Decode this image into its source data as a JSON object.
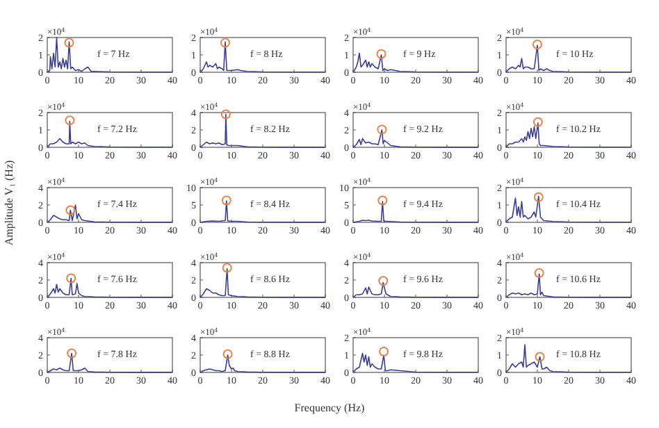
{
  "chart_data": [
    {
      "type": "line",
      "xlim": [
        0,
        40
      ],
      "xticks": [
        0,
        10,
        20,
        30,
        40
      ],
      "ylim": [
        0,
        2
      ],
      "yticks": [
        0,
        1,
        2
      ],
      "annotations": [
        "×10$^{4}$",
        "f = 7 Hz"
      ],
      "series": [
        {
          "color": "#3b3b98",
          "x": [
            0,
            0.8,
            1,
            1.5,
            2,
            2.5,
            3,
            3.5,
            4,
            4.5,
            5,
            5.5,
            6,
            6.5,
            7,
            7.5,
            8,
            9,
            10,
            11,
            12,
            13,
            14,
            15,
            20,
            30,
            40
          ],
          "values": [
            0,
            0.1,
            0.9,
            0.2,
            1.1,
            0.3,
            2.0,
            0.3,
            0.6,
            0.2,
            0.8,
            0.3,
            0.7,
            0.2,
            1.75,
            0.2,
            0.3,
            0.1,
            0.15,
            0.05,
            0.2,
            0.3,
            0.05,
            0.05,
            0.02,
            0.01,
            0.01
          ]
        },
        {
          "type": "scatter",
          "marker": "circle",
          "color": "#e8834a",
          "x": [
            7
          ],
          "values": [
            1.7
          ]
        }
      ]
    },
    {
      "type": "line",
      "xlim": [
        0,
        40
      ],
      "xticks": [
        0,
        10,
        20,
        30,
        40
      ],
      "ylim": [
        0,
        2
      ],
      "yticks": [
        0,
        1,
        2
      ],
      "annotations": [
        "×10$^{4}$",
        "f = 8 Hz"
      ],
      "series": [
        {
          "color": "#3b3b98",
          "x": [
            0,
            1,
            2,
            2.5,
            3,
            4,
            5,
            5.5,
            6,
            7,
            7.5,
            8,
            8.5,
            9,
            10,
            12,
            13,
            15,
            20,
            30,
            40
          ],
          "values": [
            0,
            0.2,
            0.6,
            0.3,
            0.4,
            0.3,
            0.5,
            0.2,
            0.3,
            0.2,
            0.1,
            1.75,
            0.1,
            0.1,
            0.1,
            0.15,
            0.1,
            0.05,
            0.02,
            0.01,
            0.01
          ]
        },
        {
          "type": "scatter",
          "marker": "circle",
          "color": "#e8834a",
          "x": [
            8
          ],
          "values": [
            1.7
          ]
        }
      ]
    },
    {
      "type": "line",
      "xlim": [
        0,
        40
      ],
      "xticks": [
        0,
        10,
        20,
        30,
        40
      ],
      "ylim": [
        0,
        2
      ],
      "yticks": [
        0,
        1,
        2
      ],
      "annotations": [
        "×10$^{4}$",
        "f = 9 Hz"
      ],
      "series": [
        {
          "color": "#3b3b98",
          "x": [
            0,
            1,
            1.5,
            2,
            2.5,
            3,
            4,
            4.5,
            5,
            5.5,
            6,
            7,
            8,
            9,
            9.5,
            10,
            11,
            12,
            15,
            20,
            30,
            40
          ],
          "values": [
            0,
            0.3,
            0.6,
            1.1,
            0.3,
            0.4,
            0.7,
            0.3,
            0.6,
            0.3,
            0.5,
            0.3,
            0.2,
            1.0,
            0.1,
            0.2,
            0.1,
            0.15,
            0.05,
            0.02,
            0.01,
            0.01
          ]
        },
        {
          "type": "scatter",
          "marker": "circle",
          "color": "#e8834a",
          "x": [
            9
          ],
          "values": [
            1.05
          ]
        }
      ]
    },
    {
      "type": "line",
      "xlim": [
        0,
        40
      ],
      "xticks": [
        0,
        10,
        20,
        30,
        40
      ],
      "ylim": [
        0,
        2
      ],
      "yticks": [
        0,
        1,
        2
      ],
      "annotations": [
        "×10$^{4}$",
        "f = 10 Hz"
      ],
      "series": [
        {
          "color": "#3b3b98",
          "x": [
            0,
            1,
            2,
            3,
            4,
            4.5,
            5,
            5.5,
            6,
            7,
            8,
            9,
            10,
            10.5,
            11,
            12,
            13,
            14,
            15,
            20,
            30,
            40
          ],
          "values": [
            0,
            0.2,
            0.3,
            0.2,
            0.4,
            0.3,
            0.8,
            0.2,
            0.3,
            0.3,
            0.2,
            0.2,
            1.55,
            0.1,
            0.2,
            0.1,
            0.2,
            0.1,
            0.05,
            0.02,
            0.01,
            0.01
          ]
        },
        {
          "type": "scatter",
          "marker": "circle",
          "color": "#e8834a",
          "x": [
            10
          ],
          "values": [
            1.6
          ]
        }
      ]
    },
    {
      "type": "line",
      "xlim": [
        0,
        40
      ],
      "xticks": [
        0,
        10,
        20,
        30,
        40
      ],
      "ylim": [
        0,
        2
      ],
      "yticks": [
        0,
        1,
        2
      ],
      "annotations": [
        "×10$^{4}$",
        "f = 7.2 Hz"
      ],
      "series": [
        {
          "color": "#3b3b98",
          "x": [
            0,
            1,
            2,
            3,
            4,
            5,
            6,
            7,
            7.2,
            7.5,
            8,
            9,
            10,
            11,
            12,
            13,
            15,
            20,
            30,
            40
          ],
          "values": [
            0,
            0.2,
            0.2,
            0.3,
            0.5,
            0.3,
            0.2,
            0.2,
            1.5,
            0.2,
            0.3,
            0.2,
            0.3,
            0.2,
            0.25,
            0.1,
            0.05,
            0.02,
            0.01,
            0.01
          ]
        },
        {
          "type": "scatter",
          "marker": "circle",
          "color": "#e8834a",
          "x": [
            7.2
          ],
          "values": [
            1.55
          ]
        }
      ]
    },
    {
      "type": "line",
      "xlim": [
        0,
        40
      ],
      "xticks": [
        0,
        10,
        20,
        30,
        40
      ],
      "ylim": [
        0,
        4
      ],
      "yticks": [
        0,
        2,
        4
      ],
      "annotations": [
        "×10$^{4}$",
        "f = 8.2 Hz"
      ],
      "series": [
        {
          "color": "#3b3b98",
          "x": [
            0,
            1,
            2,
            3,
            4,
            5,
            6,
            7,
            8,
            8.2,
            8.5,
            9,
            10,
            12,
            15,
            20,
            30,
            40
          ],
          "values": [
            0,
            0.3,
            0.6,
            0.4,
            0.5,
            0.4,
            0.5,
            0.3,
            0.4,
            3.8,
            0.3,
            0.2,
            0.2,
            0.2,
            0.05,
            0.02,
            0.01,
            0.01
          ]
        },
        {
          "type": "scatter",
          "marker": "circle",
          "color": "#e8834a",
          "x": [
            8.2
          ],
          "values": [
            3.8
          ]
        }
      ]
    },
    {
      "type": "line",
      "xlim": [
        0,
        40
      ],
      "xticks": [
        0,
        10,
        20,
        30,
        40
      ],
      "ylim": [
        0,
        4
      ],
      "yticks": [
        0,
        2,
        4
      ],
      "annotations": [
        "×10$^{4}$",
        "f = 9.2 Hz"
      ],
      "series": [
        {
          "color": "#3b3b98",
          "x": [
            0,
            1,
            2,
            2.5,
            3,
            4,
            5,
            6,
            7,
            8,
            9.2,
            9.6,
            10,
            11,
            12,
            15,
            20,
            30,
            40
          ],
          "values": [
            0,
            0.3,
            0.9,
            0.3,
            1.0,
            0.5,
            0.6,
            0.4,
            0.4,
            0.3,
            2.0,
            0.4,
            0.8,
            0.5,
            0.2,
            0.05,
            0.02,
            0.01,
            0.01
          ]
        },
        {
          "type": "scatter",
          "marker": "circle",
          "color": "#e8834a",
          "x": [
            9.2
          ],
          "values": [
            2.05
          ]
        }
      ]
    },
    {
      "type": "line",
      "xlim": [
        0,
        40
      ],
      "xticks": [
        0,
        10,
        20,
        30,
        40
      ],
      "ylim": [
        0,
        2
      ],
      "yticks": [
        0,
        1,
        2
      ],
      "annotations": [
        "×10$^{4}$",
        "f = 10.2 Hz"
      ],
      "series": [
        {
          "color": "#3b3b98",
          "x": [
            0,
            1,
            2,
            3,
            4,
            5,
            5.5,
            6,
            6.5,
            7,
            7.5,
            8,
            8.5,
            9,
            9.5,
            10.2,
            10.6,
            11,
            12,
            15,
            20,
            30,
            40
          ],
          "values": [
            0,
            0.2,
            0.2,
            0.3,
            0.3,
            0.5,
            0.3,
            0.6,
            0.4,
            0.9,
            0.5,
            1.1,
            0.6,
            1.2,
            0.5,
            1.4,
            0.2,
            0.1,
            0.1,
            0.05,
            0.02,
            0.01,
            0.01
          ]
        },
        {
          "type": "scatter",
          "marker": "circle",
          "color": "#e8834a",
          "x": [
            10.2
          ],
          "values": [
            1.45
          ]
        }
      ]
    },
    {
      "type": "line",
      "ylabel": "Amplitude V₁ (Hz)",
      "xlim": [
        0,
        40
      ],
      "xticks": [
        0,
        10,
        20,
        30,
        40
      ],
      "ylim": [
        0,
        4
      ],
      "yticks": [
        0,
        2,
        4
      ],
      "annotations": [
        "×10$^{4}$",
        "f = 7.4 Hz"
      ],
      "series": [
        {
          "color": "#3b3b98",
          "x": [
            0,
            1,
            2,
            3,
            4,
            5,
            6,
            7,
            7.4,
            8,
            9,
            9.5,
            10,
            11,
            12,
            15,
            20,
            30,
            40
          ],
          "values": [
            0,
            0.3,
            0.8,
            0.6,
            0.4,
            0.3,
            0.3,
            0.2,
            1.4,
            0.2,
            2.0,
            0.4,
            1.0,
            0.3,
            0.2,
            0.05,
            0.02,
            0.01,
            0.01
          ]
        },
        {
          "type": "scatter",
          "marker": "circle",
          "color": "#e8834a",
          "x": [
            7.4
          ],
          "values": [
            1.4
          ]
        }
      ]
    },
    {
      "type": "line",
      "xlim": [
        0,
        40
      ],
      "xticks": [
        0,
        10,
        20,
        30,
        40
      ],
      "ylim": [
        0,
        10
      ],
      "yticks": [
        0,
        5,
        10
      ],
      "annotations": [
        "×10$^{4}$",
        "f = 8.4 Hz"
      ],
      "series": [
        {
          "color": "#3b3b98",
          "x": [
            0,
            2,
            4,
            6,
            7,
            8,
            8.4,
            8.8,
            10,
            12,
            15,
            20,
            30,
            40
          ],
          "values": [
            0,
            0.3,
            0.4,
            0.3,
            0.4,
            0.5,
            6.2,
            0.4,
            0.3,
            0.3,
            0.1,
            0.05,
            0.02,
            0.02
          ]
        },
        {
          "type": "scatter",
          "marker": "circle",
          "color": "#e8834a",
          "x": [
            8.4
          ],
          "values": [
            6.3
          ]
        }
      ]
    },
    {
      "type": "line",
      "xlim": [
        0,
        40
      ],
      "xticks": [
        0,
        10,
        20,
        30,
        40
      ],
      "ylim": [
        0,
        10
      ],
      "yticks": [
        0,
        5,
        10
      ],
      "annotations": [
        "×10$^{4}$",
        "f = 9.4 Hz"
      ],
      "series": [
        {
          "color": "#3b3b98",
          "x": [
            0,
            2,
            3,
            4,
            5,
            6,
            8,
            9,
            9.4,
            9.8,
            11,
            13,
            15,
            20,
            30,
            40
          ],
          "values": [
            0,
            0.3,
            0.6,
            0.5,
            0.6,
            0.4,
            0.3,
            0.3,
            6.0,
            0.3,
            0.3,
            0.2,
            0.1,
            0.05,
            0.02,
            0.02
          ]
        },
        {
          "type": "scatter",
          "marker": "circle",
          "color": "#e8834a",
          "x": [
            9.4
          ],
          "values": [
            6.3
          ]
        }
      ]
    },
    {
      "type": "line",
      "xlim": [
        0,
        40
      ],
      "xticks": [
        0,
        10,
        20,
        30,
        40
      ],
      "ylim": [
        0,
        2
      ],
      "yticks": [
        0,
        1,
        2
      ],
      "annotations": [
        "×10$^{4}$",
        "f = 10.4 Hz"
      ],
      "series": [
        {
          "color": "#3b3b98",
          "x": [
            0,
            1,
            2,
            3,
            3.5,
            4,
            4.5,
            5,
            5.5,
            6,
            7,
            8,
            9,
            9.5,
            10.4,
            11,
            12,
            15,
            20,
            30,
            40
          ],
          "values": [
            0,
            0.2,
            0.3,
            1.4,
            0.4,
            0.9,
            0.3,
            1.2,
            0.3,
            0.4,
            0.2,
            0.3,
            0.6,
            0.3,
            1.5,
            0.3,
            0.1,
            0.05,
            0.02,
            0.01,
            0.01
          ]
        },
        {
          "type": "scatter",
          "marker": "circle",
          "color": "#e8834a",
          "x": [
            10.4
          ],
          "values": [
            1.45
          ]
        }
      ]
    },
    {
      "type": "line",
      "xlim": [
        0,
        40
      ],
      "xticks": [
        0,
        10,
        20,
        30,
        40
      ],
      "ylim": [
        0,
        4
      ],
      "yticks": [
        0,
        2,
        4
      ],
      "annotations": [
        "×10$^{4}$",
        "f = 7.6 Hz"
      ],
      "series": [
        {
          "color": "#3b3b98",
          "x": [
            0,
            1,
            2,
            2.5,
            3,
            3.5,
            4,
            5,
            6,
            7,
            7.6,
            8,
            9,
            9.5,
            10,
            11,
            12,
            15,
            20,
            30,
            40
          ],
          "values": [
            0,
            0.4,
            1.0,
            0.5,
            1.5,
            0.6,
            1.0,
            0.5,
            0.3,
            0.3,
            2.2,
            0.3,
            0.4,
            1.6,
            0.5,
            0.2,
            0.1,
            0.05,
            0.02,
            0.01,
            0.01
          ]
        },
        {
          "type": "scatter",
          "marker": "circle",
          "color": "#e8834a",
          "x": [
            7.6
          ],
          "values": [
            2.2
          ]
        }
      ]
    },
    {
      "type": "line",
      "xlim": [
        0,
        40
      ],
      "xticks": [
        0,
        10,
        20,
        30,
        40
      ],
      "ylim": [
        0,
        4
      ],
      "yticks": [
        0,
        2,
        4
      ],
      "annotations": [
        "×10$^{4}$",
        "f = 8.6 Hz"
      ],
      "series": [
        {
          "color": "#3b3b98",
          "x": [
            0,
            1,
            2,
            3,
            4,
            5,
            6,
            7,
            8,
            8.6,
            9,
            10,
            12,
            15,
            20,
            30,
            40
          ],
          "values": [
            0,
            0.4,
            1.0,
            0.8,
            0.5,
            0.5,
            0.3,
            0.2,
            0.2,
            3.3,
            0.3,
            0.2,
            0.1,
            0.05,
            0.02,
            0.01,
            0.01
          ]
        },
        {
          "type": "scatter",
          "marker": "circle",
          "color": "#e8834a",
          "x": [
            8.6
          ],
          "values": [
            3.4
          ]
        }
      ]
    },
    {
      "type": "line",
      "xlim": [
        0,
        40
      ],
      "xticks": [
        0,
        10,
        20,
        30,
        40
      ],
      "ylim": [
        0,
        4
      ],
      "yticks": [
        0,
        2,
        4
      ],
      "annotations": [
        "×10$^{4}$",
        "f = 9.6 Hz"
      ],
      "series": [
        {
          "color": "#3b3b98",
          "x": [
            0,
            1,
            2,
            3,
            4,
            4.5,
            5,
            6,
            7,
            8,
            9,
            9.6,
            10,
            10.5,
            11,
            12,
            15,
            20,
            30,
            40
          ],
          "values": [
            0,
            0.3,
            0.3,
            0.4,
            1.1,
            0.4,
            1.2,
            0.4,
            0.3,
            0.3,
            0.4,
            1.7,
            1.1,
            0.4,
            0.3,
            0.1,
            0.05,
            0.02,
            0.01,
            0.01
          ]
        },
        {
          "type": "scatter",
          "marker": "circle",
          "color": "#e8834a",
          "x": [
            9.6
          ],
          "values": [
            1.9
          ]
        }
      ]
    },
    {
      "type": "line",
      "xlim": [
        0,
        40
      ],
      "xticks": [
        0,
        10,
        20,
        30,
        40
      ],
      "ylim": [
        0,
        4
      ],
      "yticks": [
        0,
        2,
        4
      ],
      "annotations": [
        "×10$^{4}$",
        "f = 10.6 Hz"
      ],
      "series": [
        {
          "color": "#3b3b98",
          "x": [
            0,
            1,
            2,
            3,
            4,
            5,
            6,
            7,
            8,
            9,
            10,
            10.6,
            11,
            11.5,
            12,
            15,
            20,
            30,
            40
          ],
          "values": [
            0,
            0.3,
            0.5,
            0.4,
            0.5,
            0.3,
            0.4,
            0.3,
            0.5,
            0.3,
            0.4,
            2.7,
            0.3,
            0.6,
            0.2,
            0.05,
            0.02,
            0.01,
            0.01
          ]
        },
        {
          "type": "scatter",
          "marker": "circle",
          "color": "#e8834a",
          "x": [
            10.6
          ],
          "values": [
            2.8
          ]
        }
      ]
    },
    {
      "type": "line",
      "xlim": [
        0,
        40
      ],
      "xticks": [
        0,
        10,
        20,
        30,
        40
      ],
      "ylim": [
        0,
        4
      ],
      "yticks": [
        0,
        2,
        4
      ],
      "annotations": [
        "×10$^{4}$",
        "f = 7.8 Hz"
      ],
      "series": [
        {
          "color": "#3b3b98",
          "x": [
            0,
            1,
            2,
            3,
            4,
            5,
            6,
            7,
            7.8,
            8.3,
            9,
            10,
            11,
            12,
            13,
            15,
            20,
            30,
            40
          ],
          "values": [
            0,
            0.2,
            0.4,
            0.3,
            0.5,
            0.3,
            0.2,
            0.2,
            2.2,
            0.2,
            0.2,
            0.2,
            0.3,
            0.5,
            0.1,
            0.05,
            0.02,
            0.01,
            0.01
          ]
        },
        {
          "type": "scatter",
          "marker": "circle",
          "color": "#e8834a",
          "x": [
            7.8
          ],
          "values": [
            2.2
          ]
        }
      ]
    },
    {
      "type": "line",
      "xlabel": "Frequency (Hz)",
      "xlim": [
        0,
        40
      ],
      "xticks": [
        0,
        10,
        20,
        30,
        40
      ],
      "ylim": [
        0,
        4
      ],
      "yticks": [
        0,
        2,
        4
      ],
      "annotations": [
        "×10$^{4}$",
        "f = 8.8 Hz"
      ],
      "series": [
        {
          "color": "#3b3b98",
          "x": [
            0,
            1,
            2,
            3,
            4,
            5,
            6,
            7,
            8,
            8.8,
            9.3,
            10,
            10.5,
            11,
            12,
            15,
            20,
            30,
            40
          ],
          "values": [
            0,
            0.2,
            0.3,
            0.4,
            0.3,
            0.2,
            0.2,
            0.1,
            0.2,
            2.0,
            0.8,
            0.4,
            0.5,
            0.2,
            0.1,
            0.05,
            0.02,
            0.01,
            0.01
          ]
        },
        {
          "type": "scatter",
          "marker": "circle",
          "color": "#e8834a",
          "x": [
            8.8
          ],
          "values": [
            2.1
          ]
        }
      ]
    },
    {
      "type": "line",
      "xlim": [
        0,
        40
      ],
      "xticks": [
        0,
        10,
        20,
        30,
        40
      ],
      "ylim": [
        0,
        2
      ],
      "yticks": [
        0,
        1,
        2
      ],
      "annotations": [
        "×10$^{4}$",
        "f = 9.8 Hz"
      ],
      "series": [
        {
          "color": "#3b3b98",
          "x": [
            0,
            1,
            2,
            3,
            3.5,
            4,
            4.5,
            5,
            5.5,
            6,
            7,
            8,
            9,
            9.8,
            10.3,
            11,
            12,
            15,
            20,
            30,
            40
          ],
          "values": [
            0,
            0.2,
            0.3,
            1.1,
            0.6,
            1.0,
            0.4,
            0.9,
            0.3,
            0.5,
            0.3,
            0.2,
            0.2,
            1.0,
            0.1,
            0.1,
            0.15,
            0.1,
            0.02,
            0.01,
            0.01
          ]
        },
        {
          "type": "scatter",
          "marker": "circle",
          "color": "#e8834a",
          "x": [
            9.8
          ],
          "values": [
            1.2
          ]
        }
      ]
    },
    {
      "type": "line",
      "xlim": [
        0,
        40
      ],
      "xticks": [
        0,
        10,
        20,
        30,
        40
      ],
      "ylim": [
        0,
        2
      ],
      "yticks": [
        0,
        1,
        2
      ],
      "annotations": [
        "×10$^{4}$",
        "f = 10.8 Hz"
      ],
      "series": [
        {
          "color": "#3b3b98",
          "x": [
            0,
            1,
            2,
            3,
            4,
            5,
            5.5,
            6,
            6.5,
            7,
            8,
            9,
            10,
            10.8,
            11.5,
            12,
            13,
            14,
            15,
            20,
            30,
            40
          ],
          "values": [
            0,
            0.2,
            0.5,
            0.3,
            0.5,
            0.6,
            0.3,
            1.6,
            0.3,
            0.4,
            0.5,
            0.6,
            0.3,
            0.9,
            0.2,
            0.2,
            0.3,
            0.1,
            0.05,
            0.02,
            0.01,
            0.01
          ]
        },
        {
          "type": "scatter",
          "marker": "circle",
          "color": "#e8834a",
          "x": [
            10.8
          ],
          "values": [
            0.9
          ]
        }
      ]
    }
  ]
}
